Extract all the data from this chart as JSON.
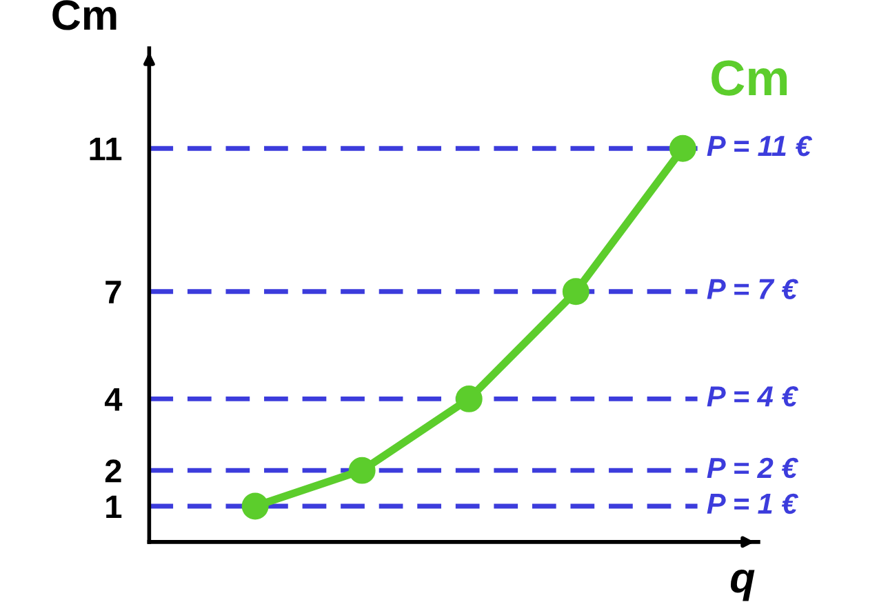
{
  "chart_data": {
    "type": "line",
    "ylabel": "Cm",
    "xlabel": "q",
    "categories": [
      null,
      null,
      null,
      null,
      null
    ],
    "series": [
      {
        "name": "Cm",
        "color": "#5ccd2c",
        "values": [
          1,
          2,
          4,
          7,
          11
        ]
      }
    ],
    "ylim": [
      0,
      13.8
    ],
    "yticks": [
      1,
      2,
      4,
      7,
      11
    ],
    "marker": "circle",
    "line_style": "solid",
    "grid": false,
    "legend": false,
    "ref_lines": [
      {
        "axis": "y",
        "value": 11,
        "label": "P = 11 €",
        "color": "#3c3cdc",
        "line_style": "dashed"
      },
      {
        "axis": "y",
        "value": 7,
        "label": "P = 7 €",
        "color": "#3c3cdc",
        "line_style": "dashed"
      },
      {
        "axis": "y",
        "value": 4,
        "label": "P = 4 €",
        "color": "#3c3cdc",
        "line_style": "dashed"
      },
      {
        "axis": "y",
        "value": 2,
        "label": "P = 2 €",
        "color": "#3c3cdc",
        "line_style": "dashed"
      },
      {
        "axis": "y",
        "value": 1,
        "label": "P = 1 €",
        "color": "#3c3cdc",
        "line_style": "dashed"
      }
    ]
  }
}
